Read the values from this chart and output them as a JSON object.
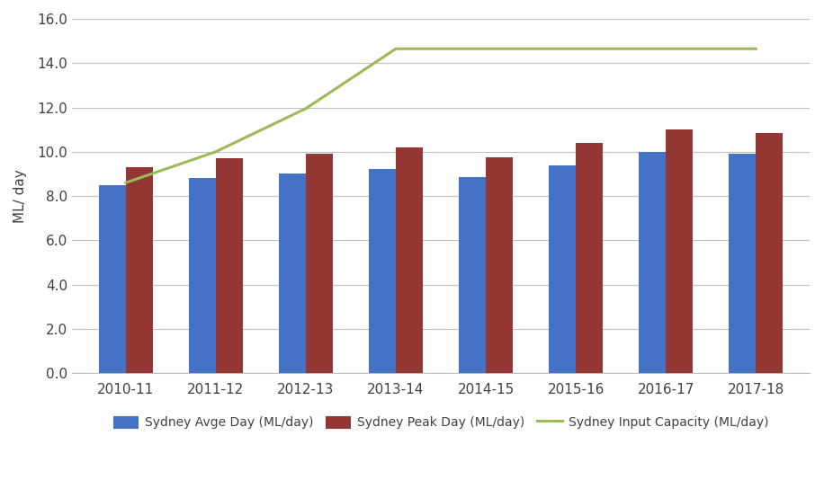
{
  "categories": [
    "2010-11",
    "2011-12",
    "2012-13",
    "2013-14",
    "2014-15",
    "2015-16",
    "2016-17",
    "2017-18"
  ],
  "avge_day": [
    8.5,
    8.8,
    9.0,
    9.2,
    8.85,
    9.4,
    10.0,
    9.9
  ],
  "peak_day": [
    9.3,
    9.7,
    9.9,
    10.2,
    9.75,
    10.4,
    11.0,
    10.85
  ],
  "input_capacity": [
    8.6,
    10.0,
    11.95,
    14.65,
    14.65,
    14.65,
    14.65,
    14.65
  ],
  "bar_color_avge": "#4472C4",
  "bar_color_peak": "#943634",
  "line_color_capacity": "#9BBB59",
  "ylabel": "ML/ day",
  "ylim": [
    0,
    16.0
  ],
  "yticks": [
    0.0,
    2.0,
    4.0,
    6.0,
    8.0,
    10.0,
    12.0,
    14.0,
    16.0
  ],
  "legend_avge": "Sydney Avge Day (ML/day)",
  "legend_peak": "Sydney Peak Day (ML/day)",
  "legend_capacity": "Sydney Input Capacity (ML/day)",
  "background_color": "#FFFFFF",
  "grid_color": "#C0C0C0",
  "bar_width": 0.3,
  "figsize": [
    9.26,
    5.54
  ],
  "dpi": 100
}
